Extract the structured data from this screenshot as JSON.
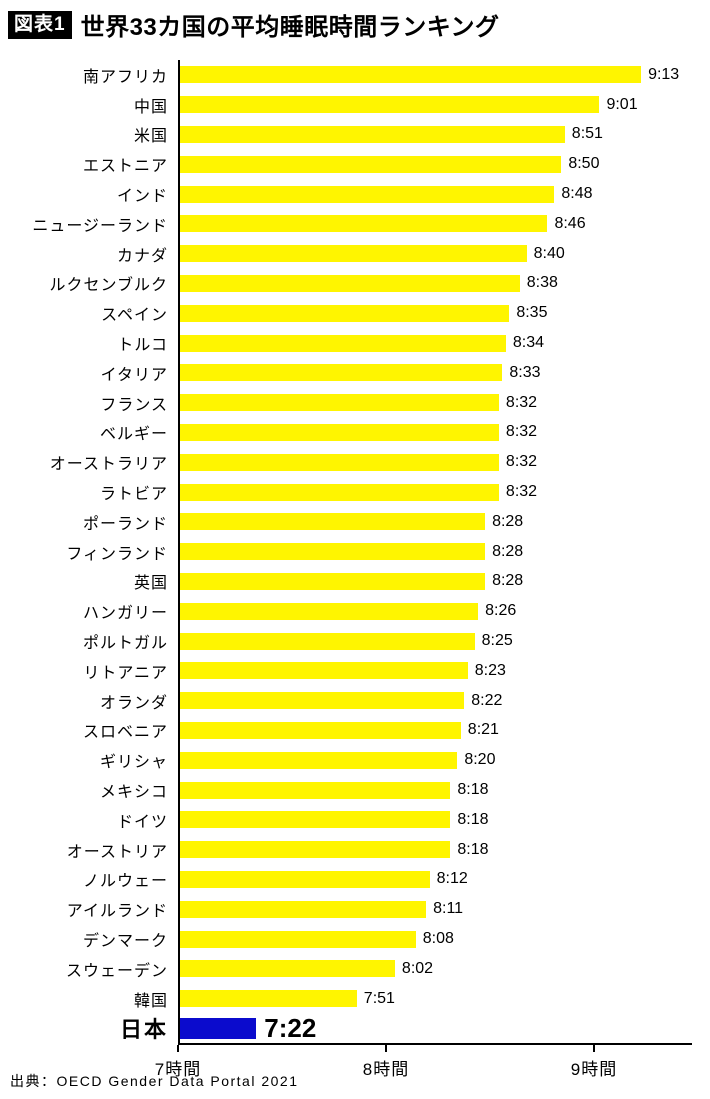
{
  "header": {
    "tag": "図表1",
    "title": "世界33カ国の平均睡眠時間ランキング"
  },
  "footer": {
    "source": "出典：OECD Gender Data Portal 2021"
  },
  "chart_data": {
    "type": "bar",
    "orientation": "horizontal",
    "title": "世界33カ国の平均睡眠時間ランキング",
    "x_axis": {
      "unit": "時間",
      "ticks": [
        "7時間",
        "8時間",
        "9時間"
      ],
      "tick_hours": [
        7,
        8,
        9
      ],
      "min_hours": 7,
      "max_hours": 9.55
    },
    "colors": {
      "bar": "#FFF500",
      "highlight": "#0B0BCD"
    },
    "rows": [
      {
        "label": "南アフリカ",
        "value": "9:13"
      },
      {
        "label": "中国",
        "value": "9:01"
      },
      {
        "label": "米国",
        "value": "8:51"
      },
      {
        "label": "エストニア",
        "value": "8:50"
      },
      {
        "label": "インド",
        "value": "8:48"
      },
      {
        "label": "ニュージーランド",
        "value": "8:46"
      },
      {
        "label": "カナダ",
        "value": "8:40"
      },
      {
        "label": "ルクセンブルク",
        "value": "8:38"
      },
      {
        "label": "スペイン",
        "value": "8:35"
      },
      {
        "label": "トルコ",
        "value": "8:34"
      },
      {
        "label": "イタリア",
        "value": "8:33"
      },
      {
        "label": "フランス",
        "value": "8:32"
      },
      {
        "label": "ベルギー",
        "value": "8:32"
      },
      {
        "label": "オーストラリア",
        "value": "8:32"
      },
      {
        "label": "ラトビア",
        "value": "8:32"
      },
      {
        "label": "ポーランド",
        "value": "8:28"
      },
      {
        "label": "フィンランド",
        "value": "8:28"
      },
      {
        "label": "英国",
        "value": "8:28"
      },
      {
        "label": "ハンガリー",
        "value": "8:26"
      },
      {
        "label": "ポルトガル",
        "value": "8:25"
      },
      {
        "label": "リトアニア",
        "value": "8:23"
      },
      {
        "label": "オランダ",
        "value": "8:22"
      },
      {
        "label": "スロベニア",
        "value": "8:21"
      },
      {
        "label": "ギリシャ",
        "value": "8:20"
      },
      {
        "label": "メキシコ",
        "value": "8:18"
      },
      {
        "label": "ドイツ",
        "value": "8:18"
      },
      {
        "label": "オーストリア",
        "value": "8:18"
      },
      {
        "label": "ノルウェー",
        "value": "8:12"
      },
      {
        "label": "アイルランド",
        "value": "8:11"
      },
      {
        "label": "デンマーク",
        "value": "8:08"
      },
      {
        "label": "スウェーデン",
        "value": "8:02"
      },
      {
        "label": "韓国",
        "value": "7:51"
      },
      {
        "label": "日本",
        "value": "7:22",
        "highlight": true
      }
    ]
  }
}
